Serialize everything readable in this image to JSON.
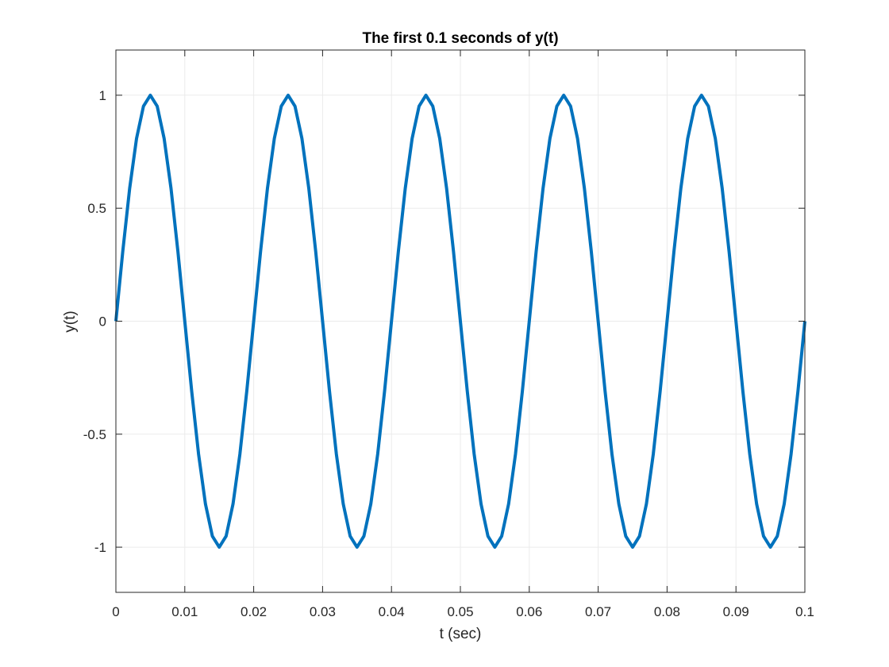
{
  "chart_data": {
    "type": "line",
    "title": "The first 0.1 seconds of y(t)",
    "xlabel": "t (sec)",
    "ylabel": "y(t)",
    "xlim": [
      0,
      0.1
    ],
    "ylim": [
      -1.2,
      1.2
    ],
    "xticks": [
      0,
      0.01,
      0.02,
      0.03,
      0.04,
      0.05,
      0.06,
      0.07,
      0.08,
      0.09,
      0.1
    ],
    "xtick_labels": [
      "0",
      "0.01",
      "0.02",
      "0.03",
      "0.04",
      "0.05",
      "0.06",
      "0.07",
      "0.08",
      "0.09",
      "0.1"
    ],
    "yticks": [
      -1,
      -0.5,
      0,
      0.5,
      1
    ],
    "ytick_labels": [
      "-1",
      "-0.5",
      "0",
      "0.5",
      "1"
    ],
    "grid": true,
    "series": [
      {
        "color": "#0072BD",
        "x": [
          0,
          0.001,
          0.002,
          0.003,
          0.004,
          0.005,
          0.006,
          0.007,
          0.008,
          0.009,
          0.01,
          0.011,
          0.012,
          0.013,
          0.014,
          0.015,
          0.016,
          0.017,
          0.018,
          0.019,
          0.02,
          0.021,
          0.022,
          0.023,
          0.024,
          0.025,
          0.026,
          0.027,
          0.028,
          0.029,
          0.03,
          0.031,
          0.032,
          0.033,
          0.034,
          0.035,
          0.036,
          0.037,
          0.038,
          0.039,
          0.04,
          0.041,
          0.042,
          0.043,
          0.044,
          0.045,
          0.046,
          0.047,
          0.048,
          0.049,
          0.05,
          0.051,
          0.052,
          0.053,
          0.054,
          0.055,
          0.056,
          0.057,
          0.058,
          0.059,
          0.06,
          0.061,
          0.062,
          0.063,
          0.064,
          0.065,
          0.066,
          0.067,
          0.068,
          0.069,
          0.07,
          0.071,
          0.072,
          0.073,
          0.074,
          0.075,
          0.076,
          0.077,
          0.078,
          0.079,
          0.08,
          0.081,
          0.082,
          0.083,
          0.084,
          0.085,
          0.086,
          0.087,
          0.088,
          0.089,
          0.09,
          0.091,
          0.092,
          0.093,
          0.094,
          0.095,
          0.096,
          0.097,
          0.098,
          0.099,
          0.1
        ],
        "y": [
          0,
          0.309,
          0.588,
          0.809,
          0.951,
          1,
          0.951,
          0.809,
          0.588,
          0.309,
          0,
          -0.309,
          -0.588,
          -0.809,
          -0.951,
          -1,
          -0.951,
          -0.809,
          -0.588,
          -0.309,
          0,
          0.309,
          0.588,
          0.809,
          0.951,
          1,
          0.951,
          0.809,
          0.588,
          0.309,
          0,
          -0.309,
          -0.588,
          -0.809,
          -0.951,
          -1,
          -0.951,
          -0.809,
          -0.588,
          -0.309,
          0,
          0.309,
          0.588,
          0.809,
          0.951,
          1,
          0.951,
          0.809,
          0.588,
          0.309,
          0,
          -0.309,
          -0.588,
          -0.809,
          -0.951,
          -1,
          -0.951,
          -0.809,
          -0.588,
          -0.309,
          0,
          0.309,
          0.588,
          0.809,
          0.951,
          1,
          0.951,
          0.809,
          0.588,
          0.309,
          0,
          -0.309,
          -0.588,
          -0.809,
          -0.951,
          -1,
          -0.951,
          -0.809,
          -0.588,
          -0.309,
          0,
          0.309,
          0.588,
          0.809,
          0.951,
          1,
          0.951,
          0.809,
          0.588,
          0.309,
          0,
          -0.309,
          -0.588,
          -0.809,
          -0.951,
          -1,
          -0.951,
          -0.809,
          -0.588,
          -0.309,
          0
        ]
      }
    ],
    "colors": {
      "grid": "#ebebeb",
      "axes": "#262626",
      "background": "#ffffff"
    }
  }
}
